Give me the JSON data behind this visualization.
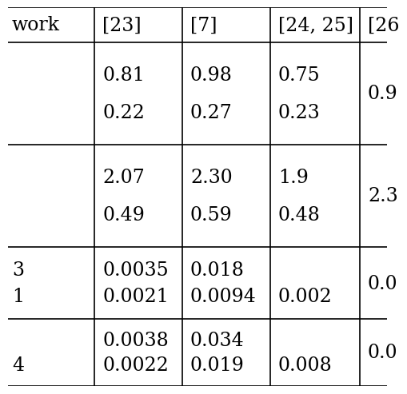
{
  "col_headers": [
    "work",
    "[23]",
    "[7]",
    "[24, 25]",
    "[26"
  ],
  "rows": [
    [
      "",
      "0.81\n0.22",
      "0.98\n0.27",
      "0.75\n0.23",
      "0.9"
    ],
    [
      "",
      "2.07\n0.49",
      "2.30\n0.59",
      "1.9\n0.48",
      "2.3"
    ],
    [
      "3\n1",
      "0.0035\n0.0021",
      "0.018\n0.0094",
      "\n0.002",
      "0.0"
    ],
    [
      "4",
      "0.0038\n0.0022",
      "0.034\n0.019",
      "\n0.008",
      "0.0"
    ]
  ],
  "bg_color": "#ffffff",
  "line_color": "#000000",
  "text_color": "#000000",
  "font_size": 17,
  "font_family": "DejaVu Serif"
}
